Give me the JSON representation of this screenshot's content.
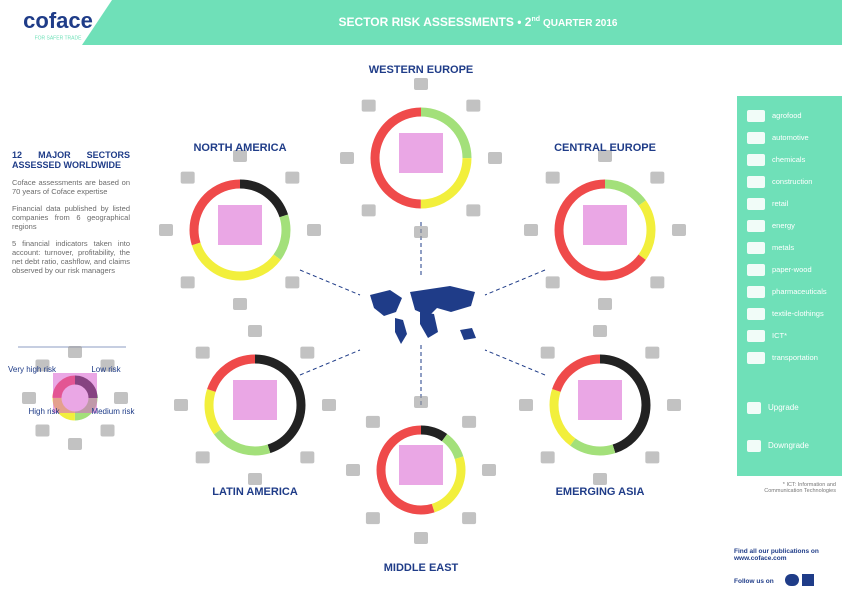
{
  "header": {
    "logo": "coface",
    "tagline": "FOR SAFER TRADE",
    "title_main": "SECTOR RISK ASSESSMENTS • 2",
    "title_sup": "nd",
    "title_end": "QUARTER 2016"
  },
  "intro": {
    "heading": "12 MAJOR SECTORS ASSESSED WORLDWIDE",
    "paragraphs": [
      "Coface assessments are based on 70 years of Coface expertise",
      "Financial data published by listed companies from 6 geographical regions",
      "5 financial indicators taken into account: turnover, profitability, the net debt ratio, cashflow, and claims observed by our risk managers"
    ]
  },
  "risk_legend": {
    "very_high": "Very high risk",
    "low": "Low risk",
    "high": "High risk",
    "medium": "Medium risk"
  },
  "regions": [
    "WESTERN EUROPE",
    "NORTH AMERICA",
    "CENTRAL EUROPE",
    "LATIN AMERICA",
    "EMERGING ASIA",
    "MIDDLE EAST"
  ],
  "sectors": [
    "agrofood",
    "automotive",
    "chemicals",
    "construction",
    "retail",
    "energy",
    "metals",
    "paper-wood",
    "pharmaceuticals",
    "textile-clothings",
    "ICT*",
    "transportation"
  ],
  "changes": {
    "upgrade": "Upgrade",
    "downgrade": "Downgrade"
  },
  "footnote": "* ICT: Information and Communication Technologies",
  "footer": {
    "publications": "Find all our publications on www.coface.com",
    "follow": "Follow us on"
  }
}
